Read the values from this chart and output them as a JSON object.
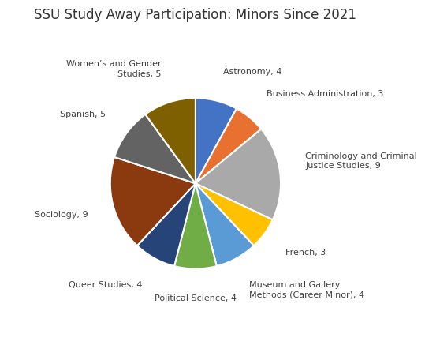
{
  "title": "SSU Study Away Participation: Minors Since 2021",
  "label_display": [
    "Astronomy, 4",
    "Business Administration, 3",
    "Criminology and Criminal\nJustice Studies, 9",
    "French, 3",
    "Museum and Gallery\nMethods (Career Minor), 4",
    "Political Science, 4",
    "Queer Studies, 4",
    "Sociology, 9",
    "Spanish, 5",
    "Women’s and Gender\nStudies, 5"
  ],
  "values": [
    4,
    3,
    9,
    3,
    4,
    4,
    4,
    9,
    5,
    5
  ],
  "colors": [
    "#4472C4",
    "#E87030",
    "#A9A9A9",
    "#FFC000",
    "#5B9BD5",
    "#70AD47",
    "#264478",
    "#8B3A0F",
    "#636363",
    "#7F6000"
  ],
  "startangle": 90,
  "title_fontsize": 12,
  "label_fontsize": 8
}
